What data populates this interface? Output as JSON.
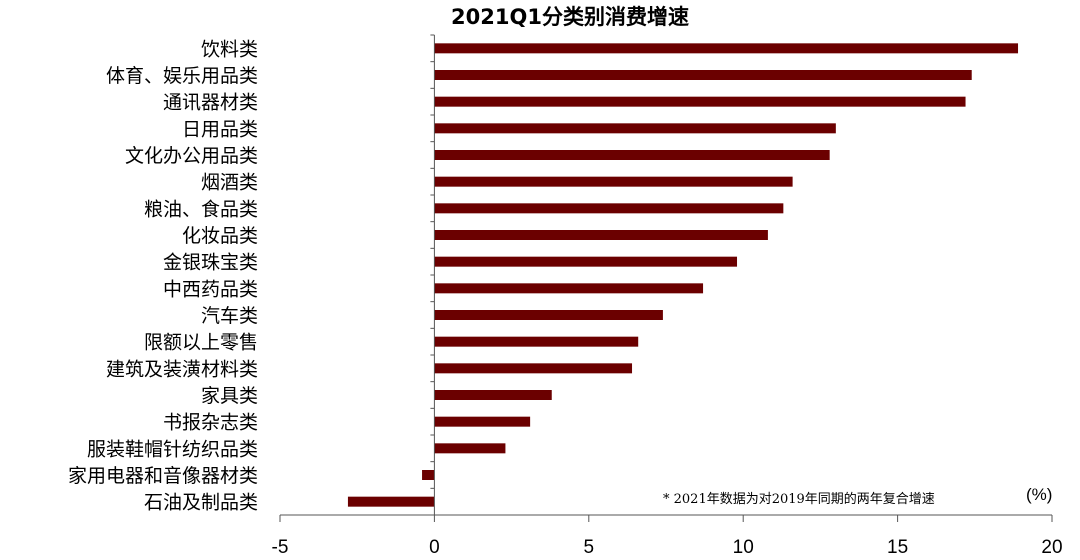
{
  "chart_data": {
    "type": "bar",
    "orientation": "horizontal",
    "title": "2021Q1分类别消费增速",
    "unit": "(%)",
    "note": "* 2021年数据为对2019年同期的两年复合增速",
    "xlim": [
      -5,
      20
    ],
    "xticks": [
      -5,
      0,
      5,
      10,
      15,
      20
    ],
    "grid": false,
    "legend": "none",
    "colors": {
      "bar": "#6b0000",
      "axis": "#555555"
    },
    "categories": [
      "饮料类",
      "体育、娱乐用品类",
      "通讯器材类",
      "日用品类",
      "文化办公用品类",
      "烟酒类",
      "粮油、食品类",
      "化妆品类",
      "金银珠宝类",
      "中西药品类",
      "汽车类",
      "限额以上零售",
      "建筑及装潢材料类",
      "家具类",
      "书报杂志类",
      "服装鞋帽针纺织品类",
      "家用电器和音像器材类",
      "石油及制品类"
    ],
    "values": [
      18.9,
      17.4,
      17.2,
      13.0,
      12.8,
      11.6,
      11.3,
      10.8,
      9.8,
      8.7,
      7.4,
      6.6,
      6.4,
      3.8,
      3.1,
      2.3,
      -0.4,
      -2.8
    ]
  }
}
